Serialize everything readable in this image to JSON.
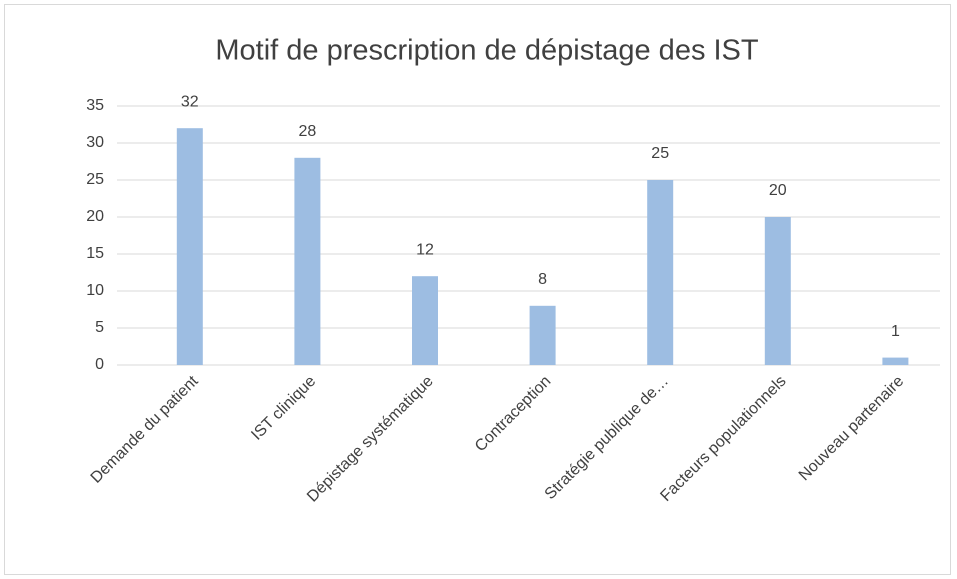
{
  "chart_data": {
    "type": "bar",
    "title": "Motif de prescription de dépistage des IST",
    "categories": [
      "Demande du patient",
      "IST clinique",
      "Dépistage systématique",
      "Contraception",
      "Stratégie publique de…",
      "Facteurs populationnels",
      "Nouveau partenaire"
    ],
    "values": [
      32,
      28,
      12,
      8,
      25,
      20,
      1
    ],
    "color": "#9dbde2",
    "ylim": [
      0,
      35
    ],
    "yticks": [
      0,
      5,
      10,
      15,
      20,
      25,
      30,
      35
    ],
    "grid": true
  }
}
